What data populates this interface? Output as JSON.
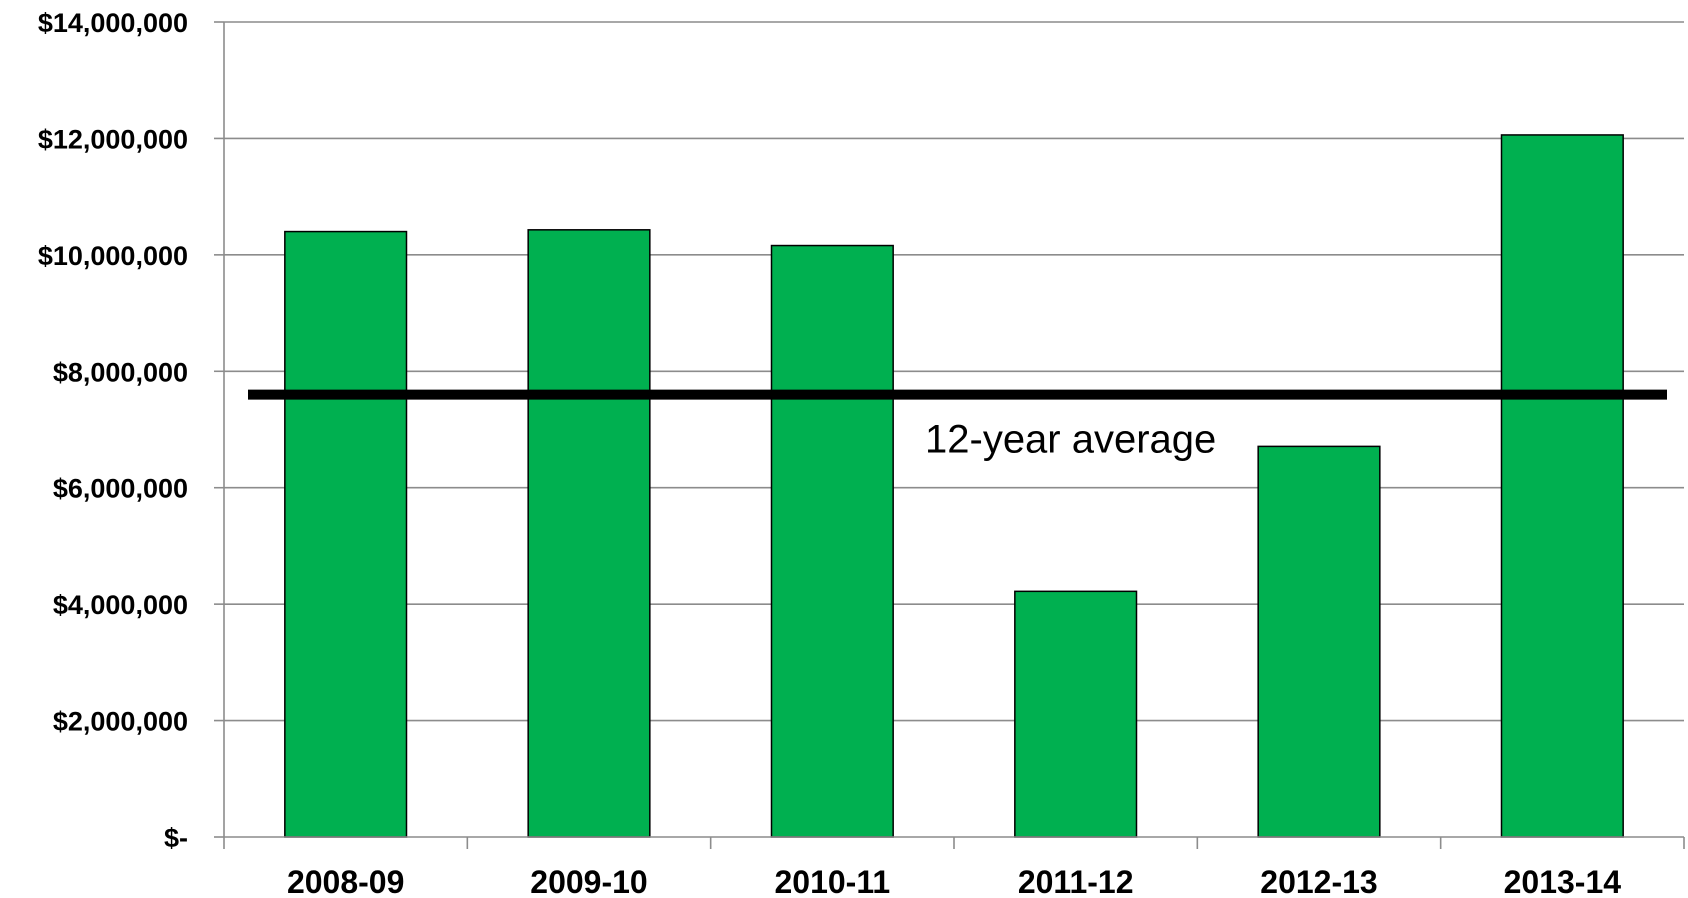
{
  "chart_data": {
    "type": "bar",
    "title": "",
    "xlabel": "",
    "ylabel": "",
    "categories": [
      "2008-09",
      "2009-10",
      "2010-11",
      "2011-12",
      "2012-13",
      "2013-14"
    ],
    "values": [
      10400000,
      10430000,
      10160000,
      4220000,
      6710000,
      12060000
    ],
    "ylim": [
      0,
      14000000
    ],
    "yticks": [
      0,
      2000000,
      4000000,
      6000000,
      8000000,
      10000000,
      12000000,
      14000000
    ],
    "ytick_labels": [
      "$-",
      "$2,000,000",
      "$4,000,000",
      "$6,000,000",
      "$8,000,000",
      "$10,000,000",
      "$12,000,000",
      "$14,000,000"
    ],
    "grid": true,
    "bar_color": "#00b050",
    "reference_line": {
      "value": 7600000,
      "label": "12-year average",
      "color": "#000000"
    }
  }
}
